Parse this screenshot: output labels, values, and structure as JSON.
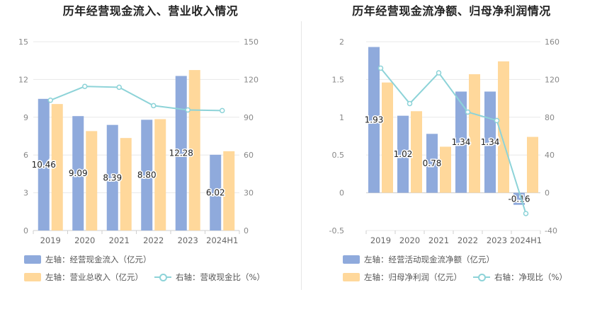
{
  "chart_data": [
    {
      "type": "bar",
      "title": "历年经营现金流入、营业收入情况",
      "categories": [
        "2019",
        "2020",
        "2021",
        "2022",
        "2023",
        "2024H1"
      ],
      "y_left": {
        "ylim": [
          0,
          15
        ],
        "ticks": [
          "0",
          "3",
          "6",
          "9",
          "12",
          "15"
        ]
      },
      "y_right": {
        "ylim": [
          0,
          150
        ],
        "ticks": [
          "0",
          "30",
          "60",
          "90",
          "120",
          "150"
        ]
      },
      "series": [
        {
          "name": "左轴：经营现金流入（亿元）",
          "kind": "bar",
          "axis": "left",
          "color": "#8faadc",
          "values": [
            10.46,
            9.09,
            8.39,
            8.8,
            12.28,
            6.02
          ],
          "labels": [
            "10.46",
            "9.09",
            "8.39",
            "8.80",
            "12.28",
            "6.02"
          ]
        },
        {
          "name": "左轴：营业总收入（亿元）",
          "kind": "bar",
          "axis": "left",
          "color": "#ffd89b",
          "values": [
            10.05,
            7.9,
            7.35,
            8.85,
            12.75,
            6.3
          ]
        },
        {
          "name": "右轴：营收现金比（%）",
          "kind": "line",
          "axis": "right",
          "color": "#8dd3d8",
          "values": [
            103.5,
            114.5,
            113.8,
            99.2,
            95.8,
            95.3
          ]
        }
      ],
      "legend_rows": [
        [
          "左轴：经营现金流入（亿元）"
        ],
        [
          "左轴：营业总收入（亿元）",
          "右轴：营收现金比（%）"
        ]
      ],
      "grid": true,
      "legend": "bottom"
    },
    {
      "type": "bar",
      "title": "历年经营现金流净额、归母净利润情况",
      "categories": [
        "2019",
        "2020",
        "2021",
        "2022",
        "2023",
        "2024H1"
      ],
      "y_left": {
        "ylim": [
          -0.5,
          2
        ],
        "ticks": [
          "-0.5",
          "0",
          "0.5",
          "1",
          "1.5",
          "2"
        ]
      },
      "y_right": {
        "ylim": [
          -40,
          160
        ],
        "ticks": [
          "-40",
          "0",
          "40",
          "80",
          "120",
          "160"
        ]
      },
      "series": [
        {
          "name": "左轴：经营活动现金流净额（亿元）",
          "kind": "bar",
          "axis": "left",
          "color": "#8faadc",
          "values": [
            1.93,
            1.02,
            0.78,
            1.34,
            1.34,
            -0.16
          ],
          "labels": [
            "1.93",
            "1.02",
            "0.78",
            "1.34",
            "1.34",
            "-0.16"
          ]
        },
        {
          "name": "左轴：归母净利润（亿元）",
          "kind": "bar",
          "axis": "left",
          "color": "#ffd89b",
          "values": [
            1.46,
            1.08,
            0.61,
            1.57,
            1.74,
            0.74
          ]
        },
        {
          "name": "右轴：净现比（%）",
          "kind": "line",
          "axis": "right",
          "color": "#8dd3d8",
          "values": [
            132,
            94.5,
            127,
            85.5,
            76.5,
            -22
          ]
        }
      ],
      "legend_rows": [
        [
          "左轴：经营活动现金流净额（亿元）"
        ],
        [
          "左轴：归母净利润（亿元）",
          "右轴：净现比（%）"
        ]
      ],
      "grid": true,
      "legend": "bottom"
    }
  ]
}
